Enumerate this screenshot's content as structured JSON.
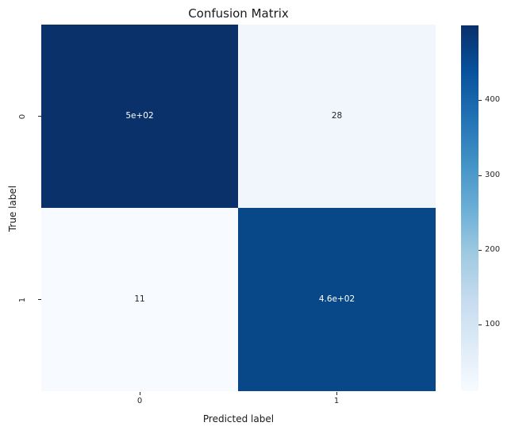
{
  "chart_data": {
    "type": "heatmap",
    "title": "Confusion Matrix",
    "xlabel": "Predicted label",
    "ylabel": "True label",
    "x_tick_labels": [
      "0",
      "1"
    ],
    "y_tick_labels": [
      "0",
      "1"
    ],
    "matrix": [
      [
        500,
        28
      ],
      [
        11,
        460
      ]
    ],
    "cell_annotations": [
      [
        "5e+02",
        "28"
      ],
      [
        "11",
        "4.6e+02"
      ]
    ],
    "cell_colors": [
      [
        "#0a3169",
        "#f1f6fd"
      ],
      [
        "#f7fafe",
        "#084889"
      ]
    ],
    "colormap": "Blues",
    "colorbar_range": [
      11,
      500
    ],
    "colorbar_tick_labels_top_to_bottom": [
      "400",
      "300",
      "200",
      "100"
    ],
    "colorbar_position": "right",
    "grid": false,
    "colors": {
      "max_cell": "#08306b",
      "min_cell": "#f7fbff",
      "annotation_light": "#ffffff",
      "annotation_dark": "#262626",
      "background": "#ffffff"
    }
  }
}
